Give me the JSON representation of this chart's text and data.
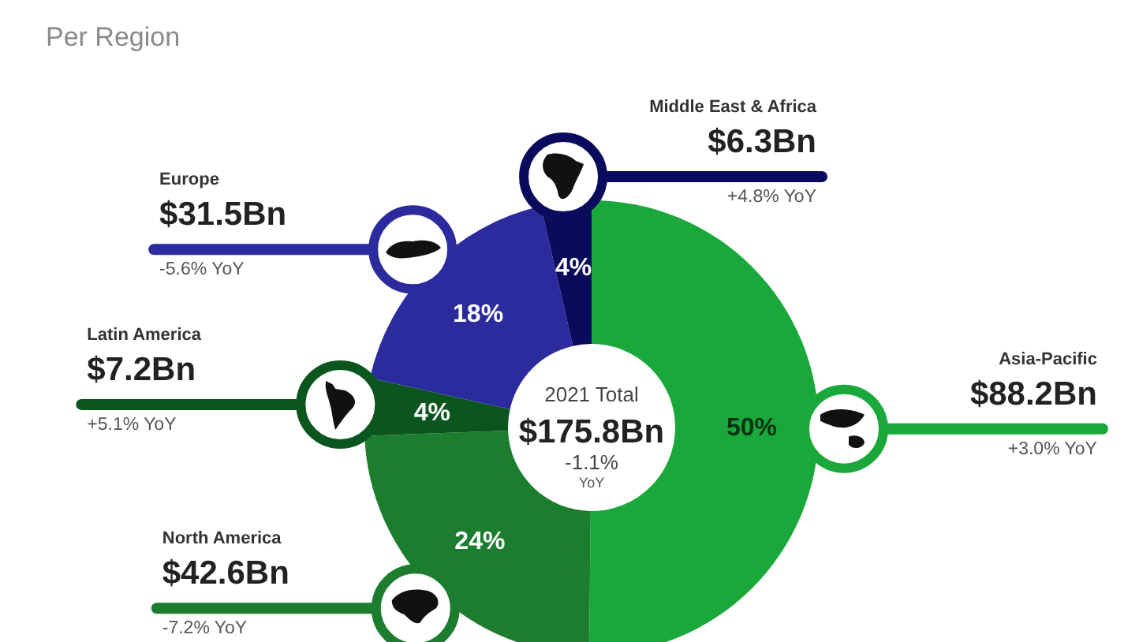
{
  "chart_data": {
    "type": "donut",
    "subtitle": "Per Region",
    "categories": [
      "Asia-Pacific",
      "North America",
      "Latin America",
      "Europe",
      "Middle East & Africa"
    ],
    "values": [
      88.2,
      42.6,
      7.2,
      31.5,
      6.3
    ],
    "colors": [
      "#1aa83a",
      "#1c7d2e",
      "#0b561f",
      "#2b2b9e",
      "#0b0b5e"
    ],
    "value_labels": [
      "$88.2Bn",
      "$42.6Bn",
      "$7.2Bn",
      "$31.5Bn",
      "$6.3Bn"
    ],
    "annotations": [
      {
        "text": "50%",
        "x": "Asia-Pacific"
      },
      {
        "text": "+3.0% YoY",
        "x": "Asia-Pacific"
      },
      {
        "text": "24%",
        "x": "North America"
      },
      {
        "text": "-7.2% YoY",
        "x": "North America"
      },
      {
        "text": "4%",
        "x": "Latin America"
      },
      {
        "text": "+5.1% YoY",
        "x": "Latin America"
      },
      {
        "text": "18%",
        "x": "Europe"
      },
      {
        "text": "-5.6% YoY",
        "x": "Europe"
      },
      {
        "text": "4%",
        "x": "Middle East & Africa"
      },
      {
        "text": "+4.8% YoY",
        "x": "Middle East & Africa"
      },
      "2021 Total",
      "$175.8Bn",
      "-1.1%",
      "YoY"
    ]
  }
}
